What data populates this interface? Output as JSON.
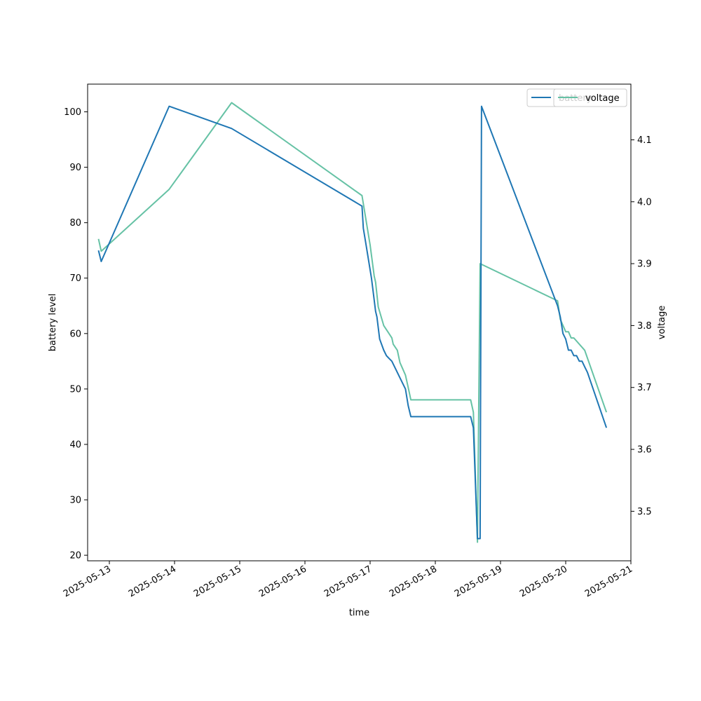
{
  "chart_data": {
    "type": "line",
    "xlabel": "time",
    "ylabel_left": "battery level",
    "ylabel_right": "voltage",
    "x_ticks": [
      "2025-05-13",
      "2025-05-14",
      "2025-05-15",
      "2025-05-16",
      "2025-05-17",
      "2025-05-18",
      "2025-05-19",
      "2025-05-20",
      "2025-05-21"
    ],
    "y_left_ticks": [
      20,
      30,
      40,
      50,
      60,
      70,
      80,
      90,
      100
    ],
    "y_right_ticks": [
      3.5,
      3.6,
      3.7,
      3.8,
      3.9,
      4.0,
      4.1
    ],
    "xlim": [
      "2025-05-12 16:00",
      "2025-05-21 00:00"
    ],
    "ylim_left": [
      19,
      105
    ],
    "ylim_right": [
      3.42,
      4.19
    ],
    "grid": false,
    "legend_position": "top-right",
    "legend_left": [
      "battery"
    ],
    "legend_right": [
      "voltage"
    ],
    "colors": {
      "battery": "#1f77b4",
      "voltage": "#66c2a5"
    },
    "series": [
      {
        "name": "battery",
        "axis": "left",
        "x": [
          "2025-05-12 20:00",
          "2025-05-12 21:00",
          "2025-05-13 22:00",
          "2025-05-14 21:00",
          "2025-05-16 21:00",
          "2025-05-16 21:30",
          "2025-05-16 22:30",
          "2025-05-17 00:30",
          "2025-05-17 01:00",
          "2025-05-17 02:00",
          "2025-05-17 02:30",
          "2025-05-17 03:30",
          "2025-05-17 05:00",
          "2025-05-17 06:00",
          "2025-05-17 07:00",
          "2025-05-17 08:00",
          "2025-05-17 11:00",
          "2025-05-17 13:00",
          "2025-05-17 14:00",
          "2025-05-17 15:00",
          "2025-05-17 16:00",
          "2025-05-17 17:00",
          "2025-05-17 18:00",
          "2025-05-17 19:00",
          "2025-05-17 20:00",
          "2025-05-17 21:00",
          "2025-05-18 13:00",
          "2025-05-18 14:00",
          "2025-05-18 15:30",
          "2025-05-18 16:30",
          "2025-05-18 17:00",
          "2025-05-19 21:00",
          "2025-05-19 22:00",
          "2025-05-19 23:00",
          "2025-05-20 00:00",
          "2025-05-20 01:00",
          "2025-05-20 02:00",
          "2025-05-20 03:00",
          "2025-05-20 04:00",
          "2025-05-20 05:00",
          "2025-05-20 06:00",
          "2025-05-20 07:00",
          "2025-05-20 08:00",
          "2025-05-20 15:00"
        ],
        "values": [
          75,
          73,
          101,
          97,
          83,
          79,
          76,
          70,
          68,
          64,
          63,
          59,
          57,
          56,
          55.5,
          55,
          52,
          50,
          47,
          45,
          45,
          45,
          45,
          45,
          45,
          45,
          45,
          43,
          23,
          23,
          101,
          65,
          63,
          60,
          59,
          57,
          57,
          56,
          56,
          55,
          55,
          54,
          53,
          43
        ]
      },
      {
        "name": "voltage",
        "axis": "right",
        "x": [
          "2025-05-12 20:00",
          "2025-05-12 21:00",
          "2025-05-13 22:00",
          "2025-05-14 21:00",
          "2025-05-16 21:00",
          "2025-05-17 00:00",
          "2025-05-17 01:30",
          "2025-05-17 02:00",
          "2025-05-17 03:00",
          "2025-05-17 05:00",
          "2025-05-17 06:30",
          "2025-05-17 08:00",
          "2025-05-17 08:30",
          "2025-05-17 10:00",
          "2025-05-17 11:00",
          "2025-05-17 12:00",
          "2025-05-17 13:00",
          "2025-05-17 14:00",
          "2025-05-17 15:00",
          "2025-05-18 13:00",
          "2025-05-18 14:00",
          "2025-05-18 15:30",
          "2025-05-18 16:30",
          "2025-05-19 21:00",
          "2025-05-19 22:00",
          "2025-05-20 00:00",
          "2025-05-20 01:00",
          "2025-05-20 02:00",
          "2025-05-20 03:00",
          "2025-05-20 07:00",
          "2025-05-20 15:00"
        ],
        "values": [
          3.94,
          3.92,
          4.02,
          4.16,
          4.01,
          3.93,
          3.88,
          3.87,
          3.83,
          3.8,
          3.79,
          3.78,
          3.77,
          3.76,
          3.74,
          3.73,
          3.72,
          3.7,
          3.68,
          3.68,
          3.66,
          3.45,
          3.9,
          3.84,
          3.81,
          3.79,
          3.79,
          3.78,
          3.78,
          3.76,
          3.66
        ]
      }
    ]
  }
}
